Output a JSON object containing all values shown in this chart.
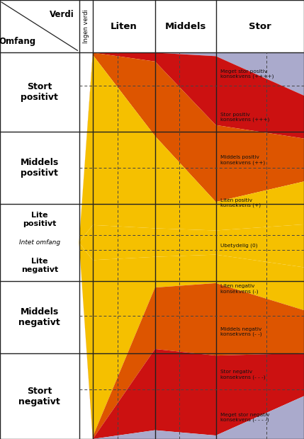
{
  "col_headers": [
    "Liten",
    "Middels",
    "Stor"
  ],
  "row_labels": [
    [
      "Stort",
      "positivt"
    ],
    [
      "Middels",
      "positivt"
    ],
    [
      "Lite",
      "positivt"
    ],
    [
      "Intet omfang"
    ],
    [
      "Lite",
      "negativt"
    ],
    [
      "Middels",
      "negativt"
    ],
    [
      "Stort",
      "negativt"
    ]
  ],
  "consequence_labels": [
    "Meget stor positiv\nkonsekvens (++++)",
    "Stor positiv\nkonsekvens (+++)",
    "Middels positiv\nkonsekvens (++)",
    "Liten positiv\nkonsekvens (+)",
    "Ubetydelig (0)",
    "Liten negativ\nkonsekvens (-)",
    "Middels negativ\nkonsekvens (- -)",
    "Stor negativ\nkonsekvens (- - -)",
    "Meget stor negativ\nkonsekvens (- - - -)"
  ],
  "zone_colors": [
    "#aaaacc",
    "#cc1111",
    "#dd5500",
    "#f5c000",
    "#f5c000",
    "#f5c000",
    "#dd5500",
    "#cc1111",
    "#aaaacc"
  ],
  "header_verdi": "Verdi",
  "header_omfang": "Omfang",
  "ingen_verdi_label": "Ingen verdi"
}
